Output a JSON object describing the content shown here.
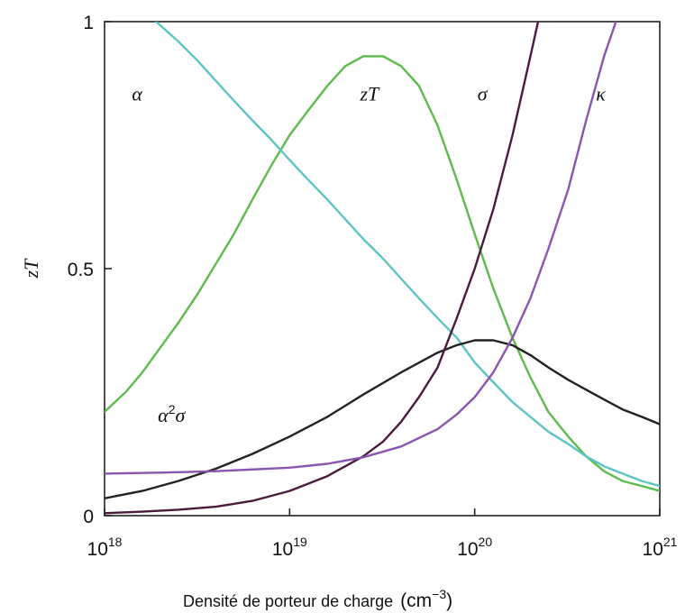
{
  "chart_data": {
    "type": "line",
    "ylabel": "zT",
    "xlabel": "Densité de porteur de charge",
    "xunit_base": "(cm",
    "xunit_exp": "−3",
    "xunit_close": ")",
    "xscale": "log",
    "xlim": [
      1e+18,
      1e+21
    ],
    "ylim": [
      0,
      1
    ],
    "grid": false,
    "xticks": [
      {
        "base": "10",
        "exp": "18",
        "value": 1e+18
      },
      {
        "base": "10",
        "exp": "19",
        "value": 1e+19
      },
      {
        "base": "10",
        "exp": "20",
        "value": 1e+20
      },
      {
        "base": "10",
        "exp": "21",
        "value": 1e+21
      }
    ],
    "yticks": [
      {
        "label": "0",
        "value": 0
      },
      {
        "label": "0.5",
        "value": 0.5
      },
      {
        "label": "1",
        "value": 1
      }
    ],
    "series": [
      {
        "name": "zT",
        "color": "#5dbb4c",
        "x": [
          1e+18,
          1.3e+18,
          1.6e+18,
          2e+18,
          2.5e+18,
          3.2e+18,
          4e+18,
          5e+18,
          6.3e+18,
          8e+18,
          1e+19,
          1.26e+19,
          1.6e+19,
          2e+19,
          2.5e+19,
          3.2e+19,
          4e+19,
          5e+19,
          6.3e+19,
          8e+19,
          1e+20,
          1.26e+20,
          1.6e+20,
          2e+20,
          2.5e+20,
          3.2e+20,
          4e+20,
          5e+20,
          6.3e+20,
          8e+20,
          1e+21
        ],
        "y": [
          0.21,
          0.25,
          0.29,
          0.34,
          0.39,
          0.45,
          0.51,
          0.57,
          0.64,
          0.71,
          0.77,
          0.82,
          0.87,
          0.91,
          0.93,
          0.93,
          0.91,
          0.87,
          0.79,
          0.68,
          0.57,
          0.46,
          0.36,
          0.28,
          0.21,
          0.16,
          0.12,
          0.09,
          0.07,
          0.06,
          0.05
        ]
      },
      {
        "name": "α",
        "color": "#5cc4c4",
        "x": [
          1.9e+18,
          2.5e+18,
          3.2e+18,
          4e+18,
          5e+18,
          6.3e+18,
          8e+18,
          1e+19,
          1.26e+19,
          1.6e+19,
          2e+19,
          2.5e+19,
          3.2e+19,
          4e+19,
          5e+19,
          6.3e+19,
          8e+19,
          1e+20,
          1.26e+20,
          1.6e+20,
          2e+20,
          2.5e+20,
          3.2e+20,
          4e+20,
          5e+20,
          6.3e+20,
          8e+20,
          1e+21
        ],
        "y": [
          1.0,
          0.96,
          0.92,
          0.88,
          0.84,
          0.8,
          0.76,
          0.72,
          0.68,
          0.64,
          0.6,
          0.56,
          0.52,
          0.48,
          0.44,
          0.4,
          0.36,
          0.31,
          0.27,
          0.23,
          0.2,
          0.17,
          0.145,
          0.12,
          0.1,
          0.085,
          0.07,
          0.06
        ]
      },
      {
        "name": "α²σ",
        "color": "#222222",
        "x": [
          1e+18,
          1.6e+18,
          2.5e+18,
          4e+18,
          6.3e+18,
          1e+19,
          1.6e+19,
          2.5e+19,
          4e+19,
          6.3e+19,
          8e+19,
          1e+20,
          1.26e+20,
          1.6e+20,
          2e+20,
          2.5e+20,
          3.2e+20,
          4e+20,
          5e+20,
          6.3e+20,
          8e+20,
          1e+21
        ],
        "y": [
          0.035,
          0.05,
          0.07,
          0.095,
          0.125,
          0.16,
          0.2,
          0.245,
          0.29,
          0.33,
          0.345,
          0.355,
          0.355,
          0.345,
          0.325,
          0.3,
          0.275,
          0.255,
          0.235,
          0.215,
          0.2,
          0.185
        ]
      },
      {
        "name": "σ",
        "color": "#4b1a3c",
        "x": [
          1e+18,
          1.6e+18,
          2.5e+18,
          4e+18,
          6.3e+18,
          1e+19,
          1.6e+19,
          2.5e+19,
          3.2e+19,
          4e+19,
          5e+19,
          6.3e+19,
          8e+19,
          1e+20,
          1.26e+20,
          1.6e+20,
          2e+20,
          2.2e+20
        ],
        "y": [
          0.005,
          0.008,
          0.012,
          0.018,
          0.03,
          0.05,
          0.08,
          0.12,
          0.15,
          0.19,
          0.24,
          0.3,
          0.4,
          0.5,
          0.62,
          0.77,
          0.93,
          1.0
        ]
      },
      {
        "name": "κ",
        "color": "#8a55b0",
        "x": [
          1e+18,
          2e+18,
          4e+18,
          1e+19,
          1.6e+19,
          2.5e+19,
          4e+19,
          6.3e+19,
          8e+19,
          1e+20,
          1.26e+20,
          1.6e+20,
          2e+20,
          2.5e+20,
          3.2e+20,
          4e+20,
          5e+20,
          5.8e+20
        ],
        "y": [
          0.085,
          0.087,
          0.09,
          0.097,
          0.105,
          0.118,
          0.14,
          0.175,
          0.205,
          0.24,
          0.29,
          0.36,
          0.44,
          0.54,
          0.66,
          0.8,
          0.93,
          1.0
        ]
      }
    ],
    "curve_labels": [
      {
        "series": "α",
        "text": "α",
        "x": 1.5e+18,
        "y": 0.84
      },
      {
        "series": "zT",
        "text": "zT",
        "x": 2.7e+19,
        "y": 0.84
      },
      {
        "series": "σ",
        "text": "σ",
        "x": 1.1e+20,
        "y": 0.84
      },
      {
        "series": "κ",
        "text": "κ",
        "x": 4.8e+20,
        "y": 0.84
      },
      {
        "series": "α²σ",
        "text_base": "α",
        "text_sup": "2",
        "text_tail": "σ",
        "x": 2.3e+18,
        "y": 0.19
      }
    ]
  }
}
